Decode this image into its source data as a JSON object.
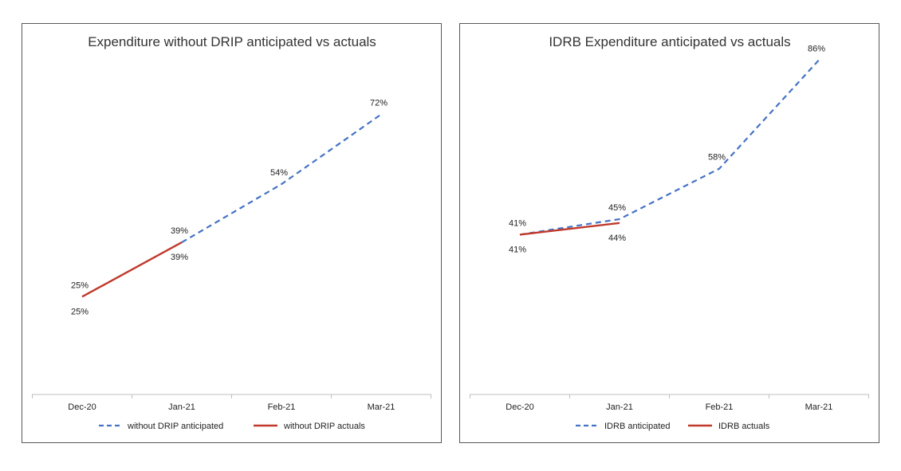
{
  "colors": {
    "anticipated": "#4472C4",
    "actuals": "#C0392B",
    "axis": "#bfbfbf",
    "border": "#595959"
  },
  "chart_data": [
    {
      "type": "line",
      "title": "Expenditure  without DRIP anticipated vs actuals",
      "categories": [
        "Dec-20",
        "Jan-21",
        "Feb-21",
        "Mar-21"
      ],
      "ylim": [
        0,
        100
      ],
      "grid": false,
      "legend": "bottom",
      "series": [
        {
          "name": "without DRIP anticipated",
          "style": "dashed",
          "color": "#4472C4",
          "values": [
            null,
            39,
            54,
            72
          ],
          "labels": [
            null,
            "39%",
            "54%",
            "72%"
          ]
        },
        {
          "name": "without DRIP actuals",
          "style": "solid",
          "color": "#C0392B",
          "values": [
            25,
            39,
            null,
            null
          ],
          "labels": [
            "25%",
            "39%",
            null,
            null
          ]
        }
      ],
      "anticipated_labels": [
        "25%",
        "39%",
        "54%",
        "72%"
      ],
      "actual_labels": [
        "25%",
        "39%"
      ]
    },
    {
      "type": "line",
      "title": "IDRB Expenditure  anticipated vs actuals",
      "categories": [
        "Dec-20",
        "Jan-21",
        "Feb-21",
        "Mar-21"
      ],
      "ylim": [
        0,
        100
      ],
      "grid": false,
      "legend": "bottom",
      "series": [
        {
          "name": "IDRB anticipated",
          "style": "dashed",
          "color": "#4472C4",
          "values": [
            41,
            45,
            58,
            86
          ],
          "labels": [
            "41%",
            "45%",
            "58%",
            "86%"
          ]
        },
        {
          "name": "IDRB actuals",
          "style": "solid",
          "color": "#C0392B",
          "values": [
            41,
            44,
            null,
            null
          ],
          "labels": [
            "41%",
            "44%",
            null,
            null
          ]
        }
      ],
      "anticipated_labels": [
        "41%",
        "45%",
        "58%",
        "86%"
      ],
      "actual_labels": [
        "41%",
        "44%"
      ]
    }
  ]
}
